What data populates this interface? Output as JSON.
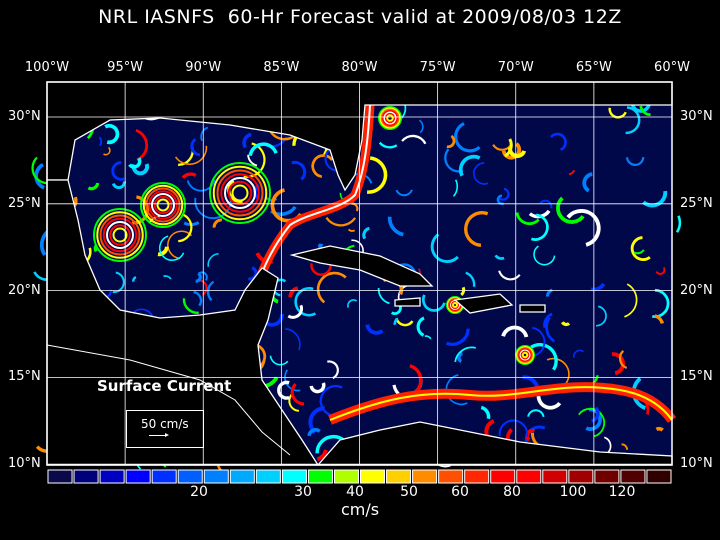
{
  "title": "NRL IASNFS  60-Hr Forecast valid at 2009/08/03 12Z",
  "lon_labels": [
    "100°W",
    "95°W",
    "90°W",
    "85°W",
    "80°W",
    "75°W",
    "70°W",
    "65°W",
    "60°W"
  ],
  "lat_labels": [
    "30°N",
    "25°N",
    "20°N",
    "15°N",
    "10°N"
  ],
  "legend": {
    "title": "Surface Current",
    "reference_vector": "50 cm/s"
  },
  "colorbar": {
    "unit": "cm/s",
    "tick_labels": [
      "20",
      "30",
      "40",
      "50",
      "60",
      "80",
      "100",
      "120"
    ],
    "colors": [
      "#0a0a4a",
      "#00007a",
      "#0000c0",
      "#0000ff",
      "#0030ff",
      "#0060ff",
      "#0080ff",
      "#00a8ff",
      "#00d0ff",
      "#00ffff",
      "#00ff00",
      "#b0ff00",
      "#ffff00",
      "#ffd000",
      "#ff8c00",
      "#ff5000",
      "#ff2800",
      "#ff0000",
      "#ff0000",
      "#d00000",
      "#a00000",
      "#700000",
      "#500000",
      "#300000"
    ]
  }
}
